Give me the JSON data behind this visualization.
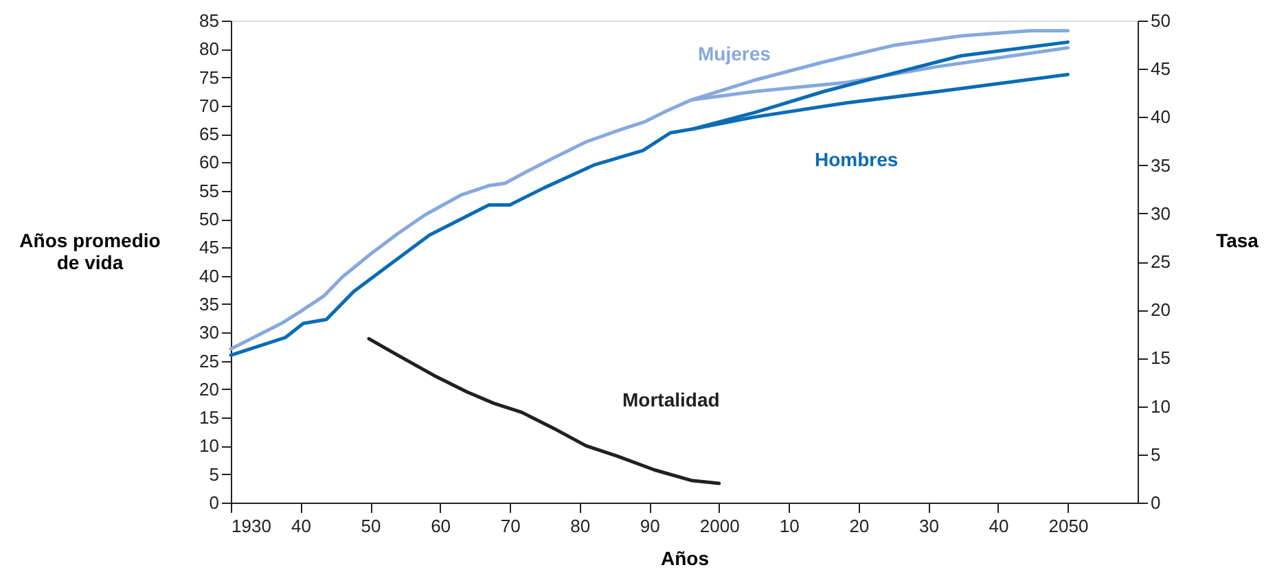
{
  "chart_data": {
    "type": "line",
    "xlabel": "Años",
    "ylabel": "Años promedio\nde vida",
    "y2label": "Tasa",
    "xlim": [
      1930,
      2060
    ],
    "xticks": [
      1930,
      {
        "value": 1940,
        "label": "40"
      },
      {
        "value": 1950,
        "label": "50"
      },
      {
        "value": 1960,
        "label": "60"
      },
      {
        "value": 1970,
        "label": "70"
      },
      {
        "value": 1980,
        "label": "80"
      },
      {
        "value": 1990,
        "label": "90"
      },
      2000,
      {
        "value": 2010,
        "label": "10"
      },
      {
        "value": 2020,
        "label": "20"
      },
      {
        "value": 2030,
        "label": "30"
      },
      {
        "value": 2040,
        "label": "40"
      },
      2050
    ],
    "ylim": [
      0,
      85
    ],
    "yticks": [
      0,
      5,
      10,
      15,
      20,
      25,
      30,
      35,
      40,
      45,
      50,
      55,
      60,
      65,
      70,
      75,
      80,
      85
    ],
    "y2lim": [
      0,
      50
    ],
    "y2ticks": [
      0,
      5,
      10,
      15,
      20,
      25,
      30,
      35,
      40,
      45,
      50
    ],
    "series": [
      {
        "name": "Mujeres",
        "color": "#86a8dc",
        "x": [
          1930,
          1937.4,
          1940,
          1943.4,
          1946,
          1950,
          1953.9,
          1957.8,
          1963.1,
          1967,
          1969.3,
          1972.3,
          1976.3,
          1980.9,
          1985.5,
          1989.4,
          1992.7,
          1996,
          2005.1,
          2015,
          2024.9,
          2034.7,
          2044.6,
          2050
        ],
        "values": [
          27.1,
          31.7,
          33.7,
          36.5,
          39.8,
          43.8,
          47.4,
          50.7,
          54.3,
          55.9,
          56.3,
          58.3,
          60.8,
          63.6,
          65.6,
          67.2,
          69.2,
          71.0,
          74.5,
          77.7,
          80.6,
          82.3,
          83.2,
          83.2
        ]
      },
      {
        "color": "#86a8dc",
        "x": [
          1996,
          2005.1,
          2018.3,
          2031.4,
          2050
        ],
        "values": [
          71.0,
          72.5,
          74.1,
          76.9,
          80.2
        ]
      },
      {
        "name": "Hombres",
        "color": "#0a6cb4",
        "x": [
          1930,
          1937.8,
          1940.4,
          1943.7,
          1947.6,
          1952.6,
          1958.5,
          1967,
          1970,
          1974.9,
          1982.2,
          1989.1,
          1993,
          1996.3,
          2005.1,
          2015,
          2024.9,
          2034.7,
          2050
        ],
        "values": [
          26.0,
          29.1,
          31.6,
          32.3,
          37.2,
          41.8,
          47.2,
          52.5,
          52.5,
          55.5,
          59.6,
          62.1,
          65.2,
          65.9,
          68.8,
          72.5,
          75.7,
          78.8,
          81.2
        ]
      },
      {
        "color": "#0a6cb4",
        "x": [
          1996.3,
          2005.1,
          2018.3,
          2031.4,
          2050
        ],
        "values": [
          65.9,
          68.0,
          70.5,
          72.5,
          75.5
        ]
      },
      {
        "name": "Mortalidad",
        "color": "#231f20",
        "axis": "y2",
        "x": [
          1949.8,
          1953.9,
          1959.1,
          1963.8,
          1967.7,
          1971.6,
          1976.3,
          1980.9,
          1985.5,
          1990.7,
          1996,
          2000
        ],
        "values": [
          17.0,
          15.3,
          13.2,
          11.5,
          10.3,
          9.4,
          7.7,
          5.9,
          4.8,
          3.4,
          2.3,
          2.0
        ]
      }
    ]
  }
}
